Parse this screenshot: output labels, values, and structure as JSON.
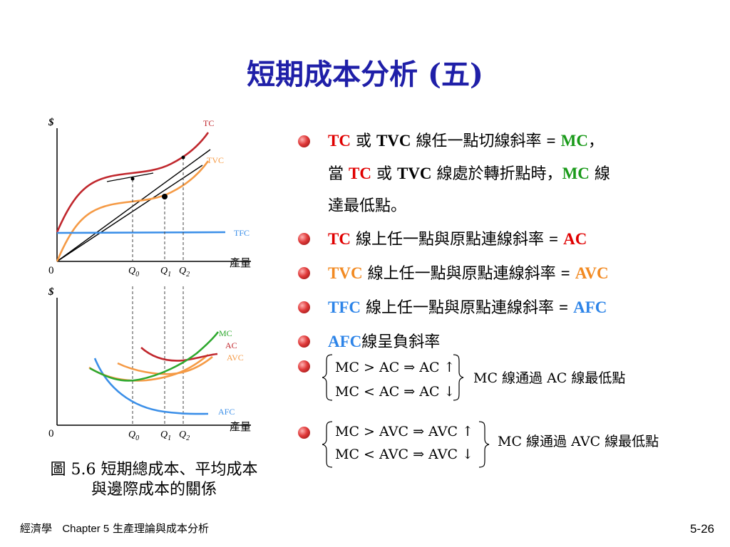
{
  "title": "短期成本分析 (五)",
  "graph": {
    "top_y_axis": "$",
    "bottom_y_axis": "$",
    "origin": "0",
    "x_axis_label": "產量",
    "q_labels": [
      "Q",
      "Q",
      "Q"
    ],
    "q_subscripts": [
      "0",
      "1",
      "2"
    ],
    "top_curves": {
      "tc": "TC",
      "tvc": "TVC",
      "tfc": "TFC"
    },
    "bottom_curves": {
      "mc": "MC",
      "ac": "AC",
      "avc": "AVC",
      "afc": "AFC"
    },
    "colors": {
      "tc": "#c0272d",
      "tvc": "#f59a45",
      "tfc": "#3b8fe8",
      "mc": "#2ea82e",
      "ac": "#c0272d",
      "avc": "#f59a45",
      "afc": "#3b8fe8"
    }
  },
  "bullets": {
    "b1": {
      "tc": "TC",
      "or": "或",
      "tvc": "TVC",
      "text1": "線任一點切線斜率",
      "eq": "=",
      "mc": "MC",
      "comma": "，",
      "dang": "當",
      "tc2": "TC",
      "or2": "或",
      "tvc2": "TVC",
      "text2": "線處於轉折點時，",
      "mc2": "MC",
      "text3": "線",
      "text4": "達最低點。"
    },
    "b2": {
      "lead": "TC",
      "text": "線上任一點與原點連線斜率",
      "eq": "=",
      "val": "AC"
    },
    "b3": {
      "lead": "TVC",
      "text": "線上任一點與原點連線斜率",
      "eq": "=",
      "val": "AVC"
    },
    "b4": {
      "lead": "TFC",
      "text": "線上任一點與原點連線斜率",
      "eq": "=",
      "val": "AFC"
    },
    "b5": {
      "lead": "AFC",
      "text": "線呈負斜率"
    }
  },
  "math": {
    "m1_line1": "MC > AC ⇒ AC ↑",
    "m1_line2": "MC < AC ⇒ AC ↓",
    "m1_result": "MC 線通過 AC 線最低點",
    "m2_line1": "MC > AVC ⇒ AVC ↑",
    "m2_line2": "MC < AVC ⇒ AVC ↓",
    "m2_result": "MC 線通過 AVC 線最低點"
  },
  "caption": {
    "line1": "圖 5.6 短期總成本、平均成本",
    "line2": "與邊際成本的關係"
  },
  "footer": {
    "book": "經濟學",
    "chapter": "Chapter 5",
    "chapter_title": "生產理論與成本分析",
    "page": "5-26"
  }
}
